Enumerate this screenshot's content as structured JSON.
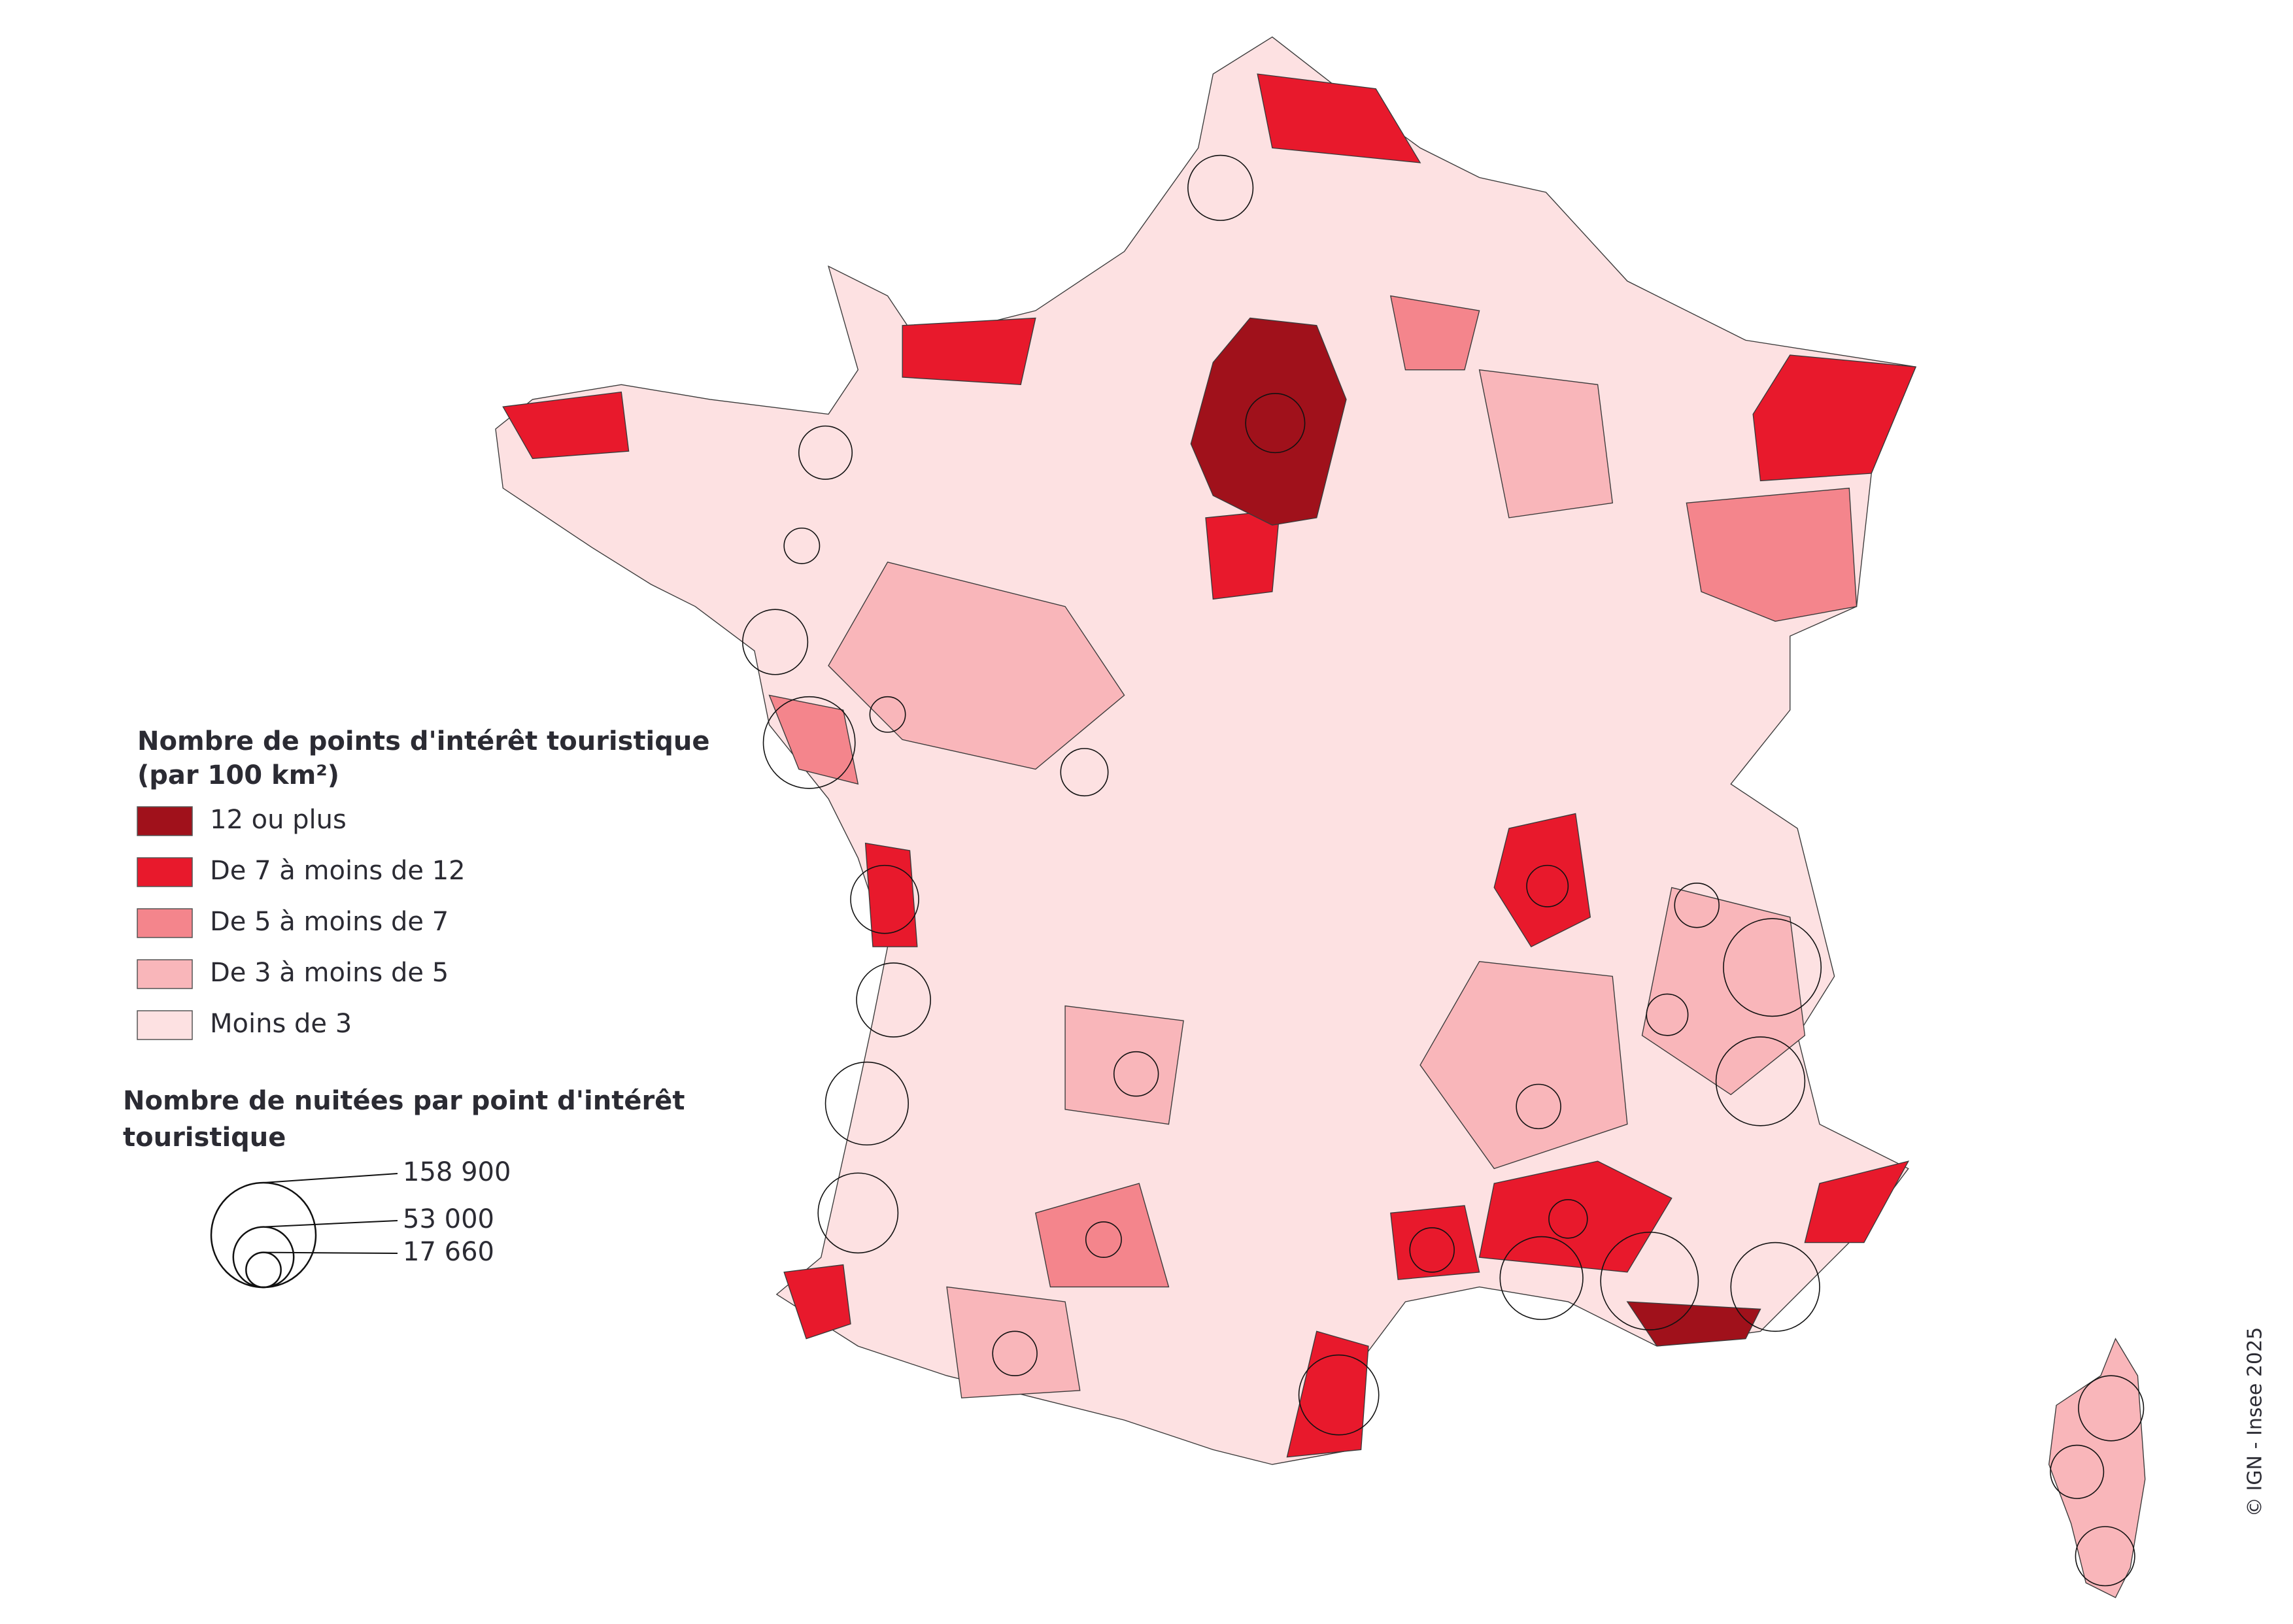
{
  "legend_density": {
    "title": [
      "Nombre de points d'intérêt touristique",
      "(par 100 km²)"
    ],
    "items": [
      {
        "label": "12 ou plus",
        "color": "#a0111b"
      },
      {
        "label": "De 7 à moins de 12",
        "color": "#e8192c"
      },
      {
        "label": "De 5 à moins de 7",
        "color": "#f4858c"
      },
      {
        "label": "De 3 à moins de 5",
        "color": "#f9b6ba"
      },
      {
        "label": "Moins de 3",
        "color": "#fde1e2"
      }
    ]
  },
  "legend_size": {
    "title": [
      "Nombre de nuitées par point d'intérêt",
      "touristique"
    ],
    "items": [
      {
        "label": "158 900",
        "value": 158900
      },
      {
        "label": "53 000",
        "value": 53000
      },
      {
        "label": "17 660",
        "value": 17660
      }
    ]
  },
  "credit": "© IGN - Insee 2025"
}
